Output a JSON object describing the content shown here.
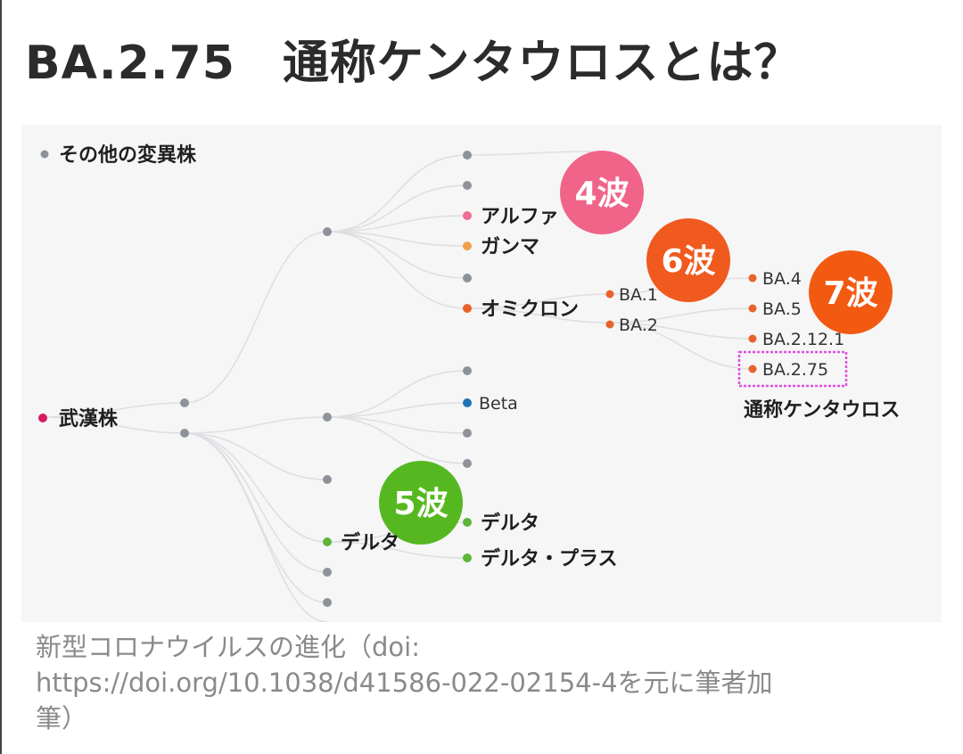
{
  "title": "BA.2.75　通称ケンタウロスとは？",
  "diagram": {
    "labels": {
      "other": "その他の変異株",
      "wuhan": "武漢株",
      "alpha": "アルファ",
      "gamma": "ガンマ",
      "omicron": "オミクロン",
      "ba1": "BA.1",
      "ba2": "BA.2",
      "ba4": "BA.4",
      "ba5": "BA.5",
      "ba2121": "BA.2.12.1",
      "ba275": "BA.2.75",
      "centaurus": "通称ケンタウロス",
      "beta": "Beta",
      "delta_mid": "デルタ",
      "delta": "デルタ",
      "delta_plus": "デルタ・プラス"
    },
    "waves": {
      "w4": "4波",
      "w5": "5波",
      "w6": "6波",
      "w7": "7波"
    },
    "colors": {
      "gray": "#8e939a",
      "pink": "#ef6b8f",
      "orange": "#e8632a",
      "amber": "#f0a04b",
      "magenta": "#d81b60",
      "blue": "#1f73b7",
      "green": "#5fb53a",
      "wave4": "#f0648a",
      "wave5": "#56b820",
      "wave6": "#f05a1e",
      "wave7": "#f25a12",
      "highlight": "#e04fe0"
    }
  },
  "caption": {
    "line1": "新型コロナウイルスの進化（doi:",
    "line2": "https://doi.org/10.1038/d41586-022-02154-4を元に筆者加",
    "line3": "筆）"
  }
}
